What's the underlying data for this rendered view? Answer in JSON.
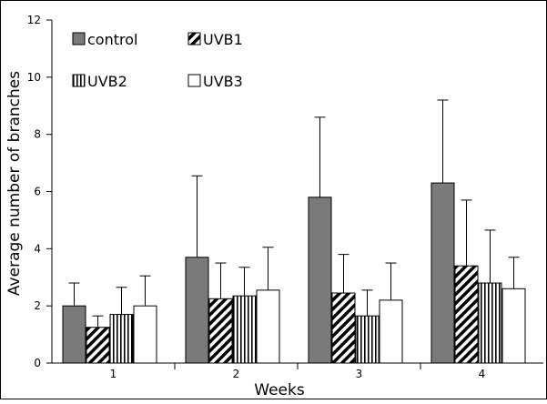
{
  "chart_data": {
    "type": "bar",
    "xlabel": "Weeks",
    "ylabel": "Average number of branches",
    "categories": [
      "1",
      "2",
      "3",
      "4"
    ],
    "ylim": [
      0,
      12
    ],
    "yticks": [
      "0",
      "2",
      "4",
      "6",
      "8",
      "10",
      "12"
    ],
    "grid": false,
    "legend_position": "top-left",
    "series": [
      {
        "name": "control",
        "fill": "gray",
        "color": "#7a7a7a",
        "values": [
          2.0,
          3.7,
          5.8,
          6.3
        ],
        "error": [
          0.8,
          2.85,
          2.8,
          2.9
        ]
      },
      {
        "name": "UVB1",
        "fill": "diagonal-hatch",
        "color": "#000000",
        "values": [
          1.25,
          2.25,
          2.45,
          3.4
        ],
        "error": [
          0.4,
          1.25,
          1.35,
          2.3
        ]
      },
      {
        "name": "UVB2",
        "fill": "vertical-stripes",
        "color": "#000000",
        "values": [
          1.7,
          2.35,
          1.65,
          2.8
        ],
        "error": [
          0.95,
          1.0,
          0.9,
          1.85
        ]
      },
      {
        "name": "UVB3",
        "fill": "white",
        "color": "#ffffff",
        "values": [
          2.0,
          2.55,
          2.2,
          2.6
        ],
        "error": [
          1.05,
          1.5,
          1.3,
          1.1
        ]
      }
    ]
  }
}
